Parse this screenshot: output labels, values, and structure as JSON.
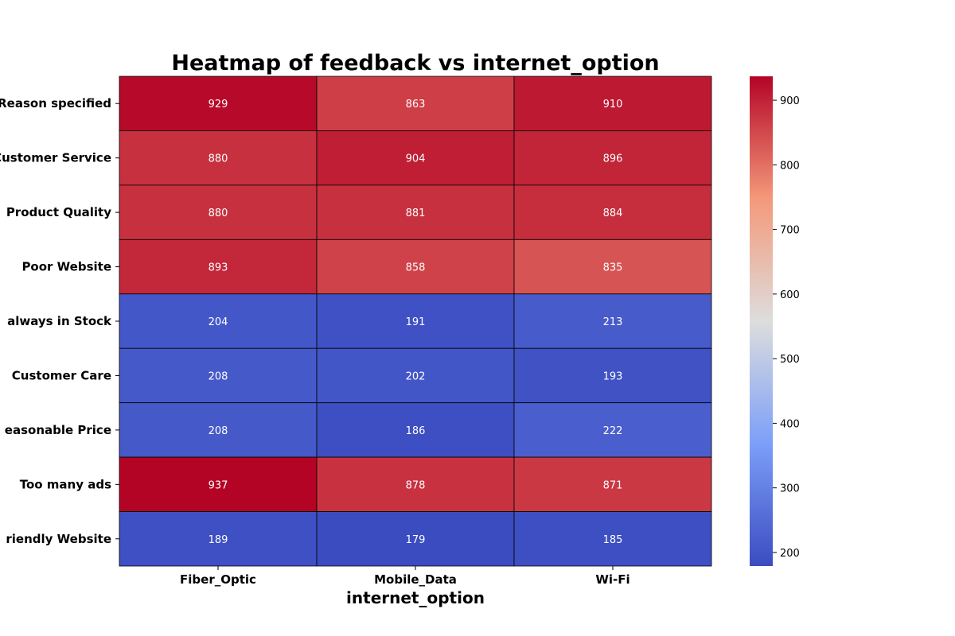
{
  "chart_data": {
    "type": "heatmap",
    "title": "Heatmap of feedback vs internet_option",
    "xlabel": "internet_option",
    "ylabel": "",
    "x_categories": [
      "Fiber_Optic",
      "Mobile_Data",
      "Wi-Fi"
    ],
    "y_categories": [
      "Reason specified",
      "Customer Service",
      "Product Quality",
      "Poor Website",
      "always in Stock",
      "Customer Care",
      "easonable Price",
      "Too many ads",
      "riendly Website"
    ],
    "values": [
      [
        929,
        863,
        910
      ],
      [
        880,
        904,
        896
      ],
      [
        880,
        881,
        884
      ],
      [
        893,
        858,
        835
      ],
      [
        204,
        191,
        213
      ],
      [
        208,
        202,
        193
      ],
      [
        208,
        186,
        222
      ],
      [
        937,
        878,
        871
      ],
      [
        189,
        179,
        185
      ]
    ],
    "colormap": "coolwarm",
    "vmin": 179,
    "vmax": 937,
    "colorbar_ticks": [
      200,
      300,
      400,
      500,
      600,
      700,
      800,
      900
    ],
    "annotations": true
  }
}
